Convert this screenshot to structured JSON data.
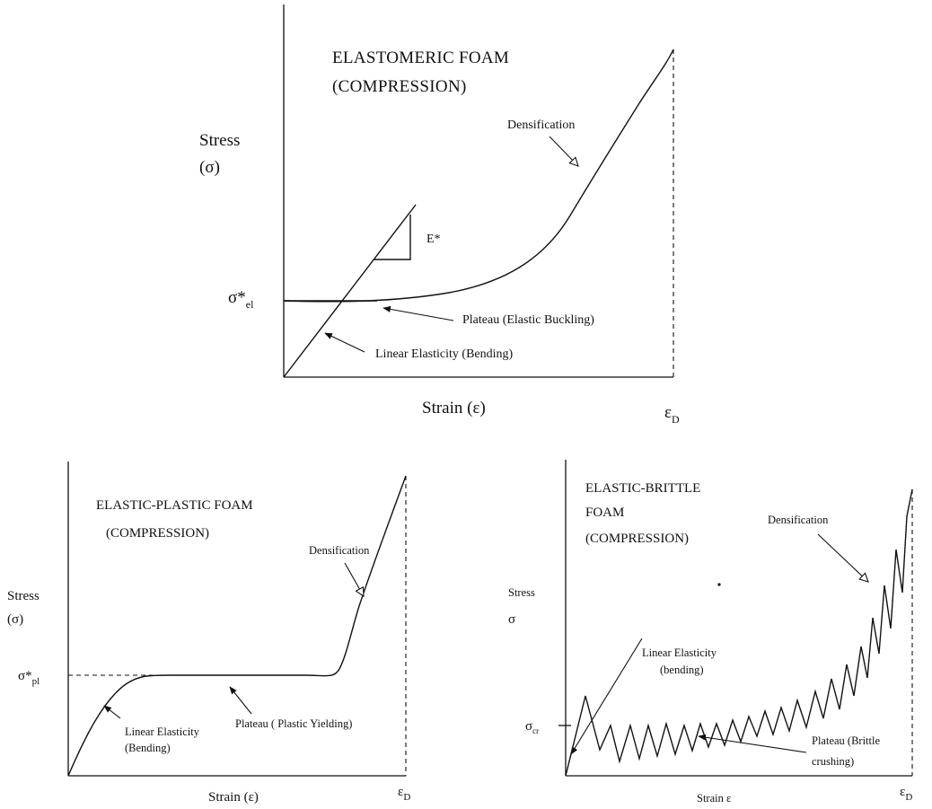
{
  "top": {
    "title_line1": "ELASTOMERIC FOAM",
    "title_line2": "(COMPRESSION)",
    "ylabel_line1": "Stress",
    "ylabel_line2": "(σ)",
    "xlabel": "Strain (ε)",
    "sigma_label": "σ*",
    "sigma_sub": "el",
    "epsd_label": "ε",
    "epsd_sub": "D",
    "e_star": "E*",
    "ann_densification": "Densification",
    "ann_plateau": "Plateau (Elastic Buckling)",
    "ann_linear": "Linear Elasticity (Bending)"
  },
  "left": {
    "title_line1": "ELASTIC-PLASTIC FOAM",
    "title_line2": "(COMPRESSION)",
    "ylabel_line1": "Stress",
    "ylabel_line2": "(σ)",
    "xlabel": "Strain (ε)",
    "sigma_label": "σ*",
    "sigma_sub": "pl",
    "epsd_label": "ε",
    "epsd_sub": "D",
    "ann_densification": "Densification",
    "ann_plateau": "Plateau ( Plastic Yielding)",
    "ann_linear_line1": "Linear Elasticity",
    "ann_linear_line2": "(Bending)"
  },
  "right": {
    "title_line1": "ELASTIC-BRITTLE",
    "title_line2": "FOAM",
    "title_line3": "(COMPRESSION)",
    "ylabel_line1": "Stress",
    "ylabel_line2": "σ",
    "xlabel": "Strain ε",
    "sigma_label": "σ",
    "sigma_sub": "cr",
    "epsd_label": "ε",
    "epsd_sub": "D",
    "ann_densification": "Densification",
    "ann_linear_line1": "Linear Elasticity",
    "ann_linear_line2": "(bending)",
    "ann_plateau_line1": "Plateau (Brittle",
    "ann_plateau_line2": "crushing)"
  }
}
